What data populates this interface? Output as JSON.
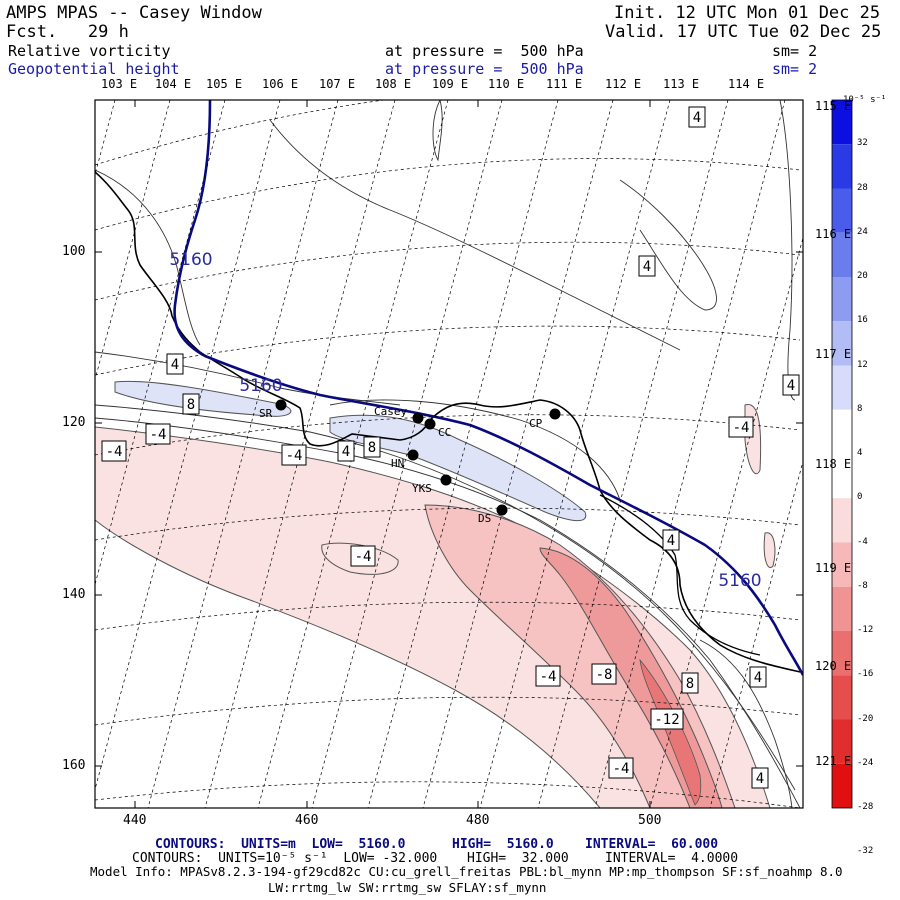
{
  "header": {
    "title": "AMPS MPAS -- Casey Window",
    "fcst": "Fcst.   29 h",
    "init": "Init. 12 UTC Mon 01 Dec 25",
    "valid": "Valid. 17 UTC Tue 02 Dec 25",
    "field1": "Relative vorticity",
    "field1_level": "at pressure =  500 hPa",
    "field1_sm": "sm= 2",
    "field2": "Geopotential height",
    "field2_level": "at pressure =  500 hPa",
    "field2_sm": "sm= 2"
  },
  "lon_top": [
    "103 E",
    "104 E",
    "105 E",
    "106 E",
    "107 E",
    "108 E",
    "109 E",
    "110 E",
    "111 E",
    "112 E",
    "113 E",
    "114 E"
  ],
  "lon_right": [
    "115 E",
    "116 E",
    "117 E",
    "118 E",
    "119 E",
    "120 E",
    "121 E"
  ],
  "axis_y": [
    "100",
    "120",
    "140",
    "160"
  ],
  "axis_x": [
    "440",
    "460",
    "480",
    "500"
  ],
  "colorbar": {
    "units": "10⁻⁵ s⁻¹",
    "labels": [
      "32",
      "28",
      "24",
      "20",
      "16",
      "12",
      "8",
      "4",
      "0",
      "-4",
      "-8",
      "-12",
      "-16",
      "-20",
      "-24",
      "-28",
      "-32"
    ],
    "colors": [
      "#0b10e0",
      "#2a3be6",
      "#4a5dea",
      "#6b7ced",
      "#8d9bf1",
      "#b2bcf5",
      "#d6dcfa",
      "#ffffff",
      "#ffffff",
      "#fbdcdc",
      "#f6b8b8",
      "#f09393",
      "#ea7070",
      "#e64d4d",
      "#e22d2d",
      "#e01010"
    ]
  },
  "stations": [
    {
      "name": "SR"
    },
    {
      "name": "Casey"
    },
    {
      "name": "CC"
    },
    {
      "name": "CP"
    },
    {
      "name": "HN"
    },
    {
      "name": "YKS"
    },
    {
      "name": "DS"
    }
  ],
  "contour_labels": {
    "height": [
      "5160",
      "5160",
      "5160"
    ],
    "vort": [
      "4",
      "4",
      "4",
      "8",
      "8",
      "-4",
      "-4",
      "-4",
      "-4",
      "4",
      "-4",
      "4",
      "-4",
      "-8",
      "8",
      "-12",
      "-4",
      "4",
      "4",
      "4"
    ]
  },
  "footer": {
    "line1_a": "CONTOURS:  UNITS=m  LOW=  5160.0",
    "line1_b": "HIGH=  5160.0",
    "line1_c": "INTERVAL=  60.000",
    "line2_a": "CONTOURS:  UNITS=10⁻⁵ s⁻¹  LOW= -32.000",
    "line2_b": "HIGH=  32.000",
    "line2_c": "INTERVAL=  4.0000",
    "line3": "Model Info: MPASv8.2.3-194-gf29cd82c CU:cu_grell_freitas PBL:bl_mynn MP:mp_thompson SF:sf_noahmp 8.0",
    "line4": "LW:rrtmg_lw SW:rrtmg_sw SFLAY:sf_mynn"
  },
  "style": {
    "height_color": "#0a0a80",
    "pos_vort_fill": "#dfe3f8",
    "neg_vort_fill": "#fbe0e0"
  }
}
